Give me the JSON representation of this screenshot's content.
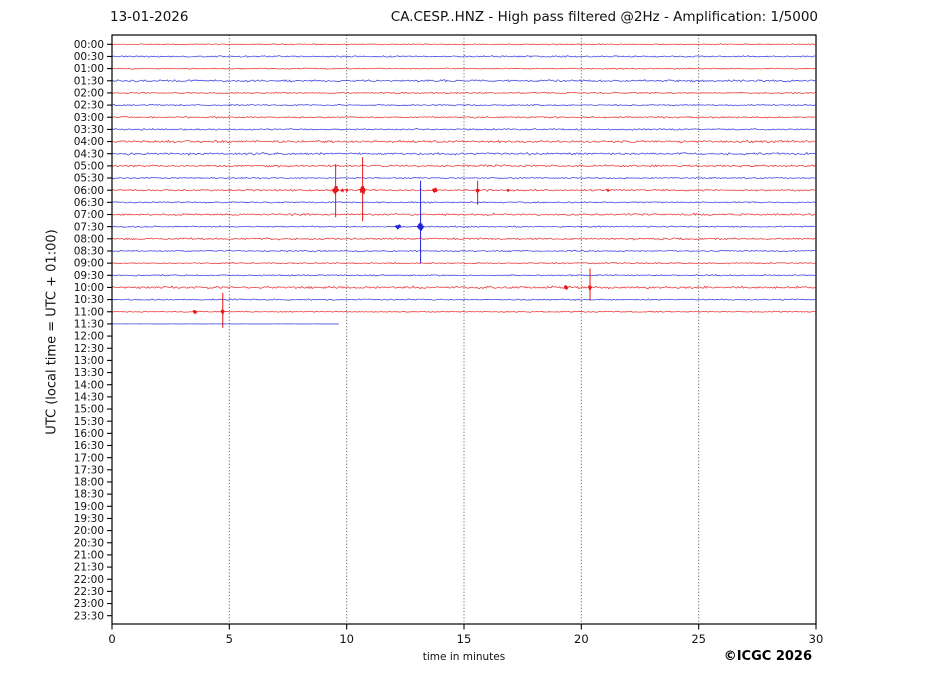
{
  "header": {
    "date": "13-01-2026",
    "title": "CA.CESP..HNZ - High pass filtered @2Hz - Amplification: 1/5000"
  },
  "footer": {
    "copyright": "©ICGC 2026"
  },
  "chart_data": {
    "type": "line",
    "title": "CA.CESP..HNZ - High pass filtered @2Hz - Amplification: 1/5000",
    "date": "13-01-2026",
    "xlabel": "time in minutes",
    "ylabel": "UTC (local time = UTC + 01:00)",
    "xlim": [
      0,
      30
    ],
    "x_ticks": [
      0,
      5,
      10,
      15,
      20,
      25,
      30
    ],
    "grid_minutes": [
      5,
      10,
      15,
      20,
      25
    ],
    "grid_on": true,
    "minutes_per_row": 30,
    "colors": {
      "red": "#e81616",
      "blue": "#2121dd",
      "grid": "#555555",
      "frame": "#000000"
    },
    "rows": [
      {
        "label": "00:00",
        "color": "red",
        "data": true,
        "amp": 0.5
      },
      {
        "label": "00:30",
        "color": "blue",
        "data": true,
        "amp": 0.8
      },
      {
        "label": "01:00",
        "color": "red",
        "data": true,
        "amp": 0.6
      },
      {
        "label": "01:30",
        "color": "blue",
        "data": true,
        "amp": 1.1
      },
      {
        "label": "02:00",
        "color": "red",
        "data": true,
        "amp": 0.7
      },
      {
        "label": "02:30",
        "color": "blue",
        "data": true,
        "amp": 0.7
      },
      {
        "label": "03:00",
        "color": "red",
        "data": true,
        "amp": 0.8
      },
      {
        "label": "03:30",
        "color": "blue",
        "data": true,
        "amp": 0.8
      },
      {
        "label": "04:00",
        "color": "red",
        "data": true,
        "amp": 1.2
      },
      {
        "label": "04:30",
        "color": "blue",
        "data": true,
        "amp": 1.1
      },
      {
        "label": "05:00",
        "color": "red",
        "data": true,
        "amp": 1.0
      },
      {
        "label": "05:30",
        "color": "blue",
        "data": true,
        "amp": 0.7
      },
      {
        "label": "06:00",
        "color": "red",
        "data": true,
        "amp": 0.9,
        "events": [
          {
            "min": 9.53,
            "hw": 3.5,
            "amp": 5.5,
            "up": 26,
            "down": 27
          },
          {
            "min": 9.82,
            "hw": 1.5,
            "amp": 1.8
          },
          {
            "min": 10.0,
            "hw": 1.2,
            "amp": 1.5
          },
          {
            "min": 10.68,
            "hw": 3.0,
            "amp": 5.5,
            "up": 33,
            "down": 31
          },
          {
            "min": 13.76,
            "hw": 2.5,
            "amp": 3.5
          },
          {
            "min": 15.58,
            "hw": 2.0,
            "amp": 2.8,
            "up": 9.5,
            "down": 14.5
          },
          {
            "min": 16.88,
            "hw": 1.6,
            "amp": 1.6
          },
          {
            "min": 21.14,
            "hw": 1.6,
            "amp": 1.4
          }
        ]
      },
      {
        "label": "06:30",
        "color": "blue",
        "data": true,
        "amp": 0.7
      },
      {
        "label": "07:00",
        "color": "red",
        "data": true,
        "amp": 1.0
      },
      {
        "label": "07:30",
        "color": "blue",
        "data": true,
        "amp": 0.7,
        "events": [
          {
            "min": 12.2,
            "hw": 3.0,
            "amp": 3.2
          },
          {
            "min": 13.15,
            "hw": 3.5,
            "amp": 4.5,
            "up": 46,
            "down": 37
          }
        ]
      },
      {
        "label": "08:00",
        "color": "red",
        "data": true,
        "amp": 1.0
      },
      {
        "label": "08:30",
        "color": "blue",
        "data": true,
        "amp": 0.7
      },
      {
        "label": "09:00",
        "color": "red",
        "data": true,
        "amp": 0.7
      },
      {
        "label": "09:30",
        "color": "blue",
        "data": true,
        "amp": 0.7
      },
      {
        "label": "10:00",
        "color": "red",
        "data": true,
        "amp": 1.2,
        "events": [
          {
            "min": 19.35,
            "hw": 2.0,
            "amp": 3.0
          },
          {
            "min": 20.37,
            "hw": 1.8,
            "amp": 3.0,
            "up": 19,
            "down": 13
          }
        ]
      },
      {
        "label": "10:30",
        "color": "blue",
        "data": true,
        "amp": 0.7
      },
      {
        "label": "11:00",
        "color": "red",
        "data": true,
        "amp": 0.6,
        "events": [
          {
            "min": 3.54,
            "hw": 2.2,
            "amp": 2.8
          },
          {
            "min": 4.72,
            "hw": 1.8,
            "amp": 2.8,
            "up": 19,
            "down": 16
          }
        ]
      },
      {
        "label": "11:30",
        "color": "blue",
        "data": true,
        "amp": 0.05,
        "end_min": 9.69
      },
      {
        "label": "12:00",
        "color": "red",
        "data": false
      },
      {
        "label": "12:30",
        "color": "blue",
        "data": false
      },
      {
        "label": "13:00",
        "color": "red",
        "data": false
      },
      {
        "label": "13:30",
        "color": "blue",
        "data": false
      },
      {
        "label": "14:00",
        "color": "red",
        "data": false
      },
      {
        "label": "14:30",
        "color": "blue",
        "data": false
      },
      {
        "label": "15:00",
        "color": "red",
        "data": false
      },
      {
        "label": "15:30",
        "color": "blue",
        "data": false
      },
      {
        "label": "16:00",
        "color": "red",
        "data": false
      },
      {
        "label": "16:30",
        "color": "blue",
        "data": false
      },
      {
        "label": "17:00",
        "color": "red",
        "data": false
      },
      {
        "label": "17:30",
        "color": "blue",
        "data": false
      },
      {
        "label": "18:00",
        "color": "red",
        "data": false
      },
      {
        "label": "18:30",
        "color": "blue",
        "data": false
      },
      {
        "label": "19:00",
        "color": "red",
        "data": false
      },
      {
        "label": "19:30",
        "color": "blue",
        "data": false
      },
      {
        "label": "20:00",
        "color": "red",
        "data": false
      },
      {
        "label": "20:30",
        "color": "blue",
        "data": false
      },
      {
        "label": "21:00",
        "color": "red",
        "data": false
      },
      {
        "label": "21:30",
        "color": "blue",
        "data": false
      },
      {
        "label": "22:00",
        "color": "red",
        "data": false
      },
      {
        "label": "22:30",
        "color": "blue",
        "data": false
      },
      {
        "label": "23:00",
        "color": "red",
        "data": false
      },
      {
        "label": "23:30",
        "color": "blue",
        "data": false
      }
    ]
  }
}
